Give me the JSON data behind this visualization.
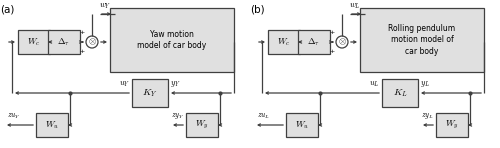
{
  "fig_width": 5.0,
  "fig_height": 1.48,
  "dpi": 100,
  "bg_color": "#ffffff",
  "lc": "#404040",
  "ec": "#404040",
  "fc": "#e0e0e0",
  "lw": 0.9,
  "diagrams": [
    {
      "label": "(a)",
      "plant_label": "Yaw motion\nmodel of car body",
      "K_label": "$K_Y$",
      "w_label": "$w_Y$",
      "u_label": "$u_Y$",
      "y_label": "$y_Y$",
      "zu_label": "$zu_{Y}$",
      "zy_label": "$zy_{Y}$",
      "Wc_label": "$W_c$",
      "Dt_label": "$\\Delta_{\\tau}$",
      "Wu_label": "$W_u$",
      "Wy_label": "$W_y$"
    },
    {
      "label": "(b)",
      "plant_label": "Rolling pendulum\nmotion model of\ncar body",
      "K_label": "$K_L$",
      "w_label": "$w_L$",
      "u_label": "$u_L$",
      "y_label": "$y_L$",
      "zu_label": "$zu_{L}$",
      "zy_label": "$zy_{L}$",
      "Wc_label": "$W_c$",
      "Dt_label": "$\\Delta_{\\tau}$",
      "Wu_label": "$W_u$",
      "Wy_label": "$W_y$"
    }
  ]
}
